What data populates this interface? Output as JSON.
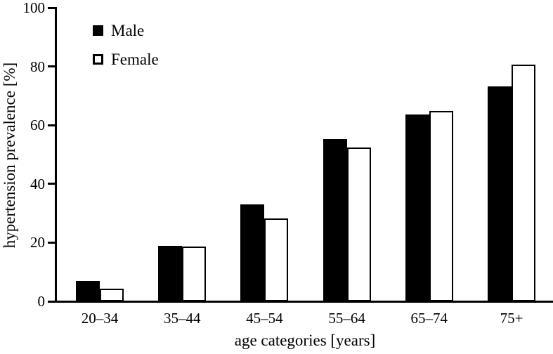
{
  "figure": {
    "background": "#ffffff",
    "ink": "#000000"
  },
  "legend": {
    "position": "top-left",
    "items": [
      {
        "label": "Male",
        "swatch": "filled-black-square"
      },
      {
        "label": "Female",
        "swatch": "open-white-square"
      }
    ]
  },
  "chart_data": {
    "type": "bar",
    "title": "",
    "categories": [
      "20–34",
      "35–44",
      "45–54",
      "55–64",
      "65–74",
      "75+"
    ],
    "series": [
      {
        "name": "Male",
        "fill": "#000000",
        "outline": "#000000",
        "values": [
          6.9,
          19.0,
          33.0,
          55.2,
          63.6,
          73.2
        ]
      },
      {
        "name": "Female",
        "fill": "#ffffff",
        "outline": "#000000",
        "values": [
          4.3,
          18.7,
          28.2,
          52.4,
          64.8,
          80.6
        ]
      }
    ],
    "xlabel": "age categories [years]",
    "ylabel": "hypertension prevalence [%]",
    "ylim": [
      0,
      100
    ],
    "yticks": [
      0,
      20,
      40,
      60,
      80,
      100
    ],
    "grid": false,
    "legend_position": "top-left",
    "bar_style": "grouped pairs, male filled black, female white with black outline"
  }
}
